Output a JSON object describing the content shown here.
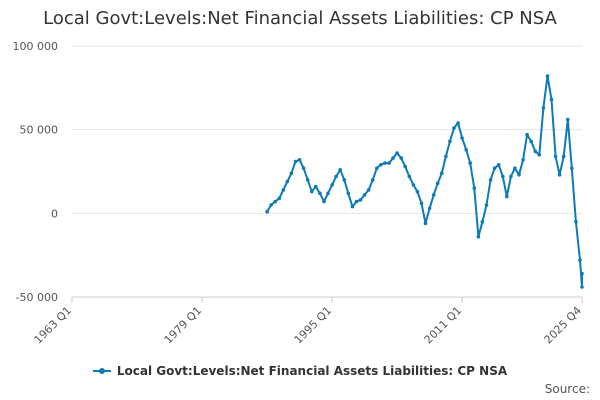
{
  "chart_data": {
    "type": "line",
    "title": "Local Govt:Levels:Net Financial Assets Liabilities: CP NSA",
    "xlabel": "",
    "ylabel": "",
    "x_start": "1963 Q1",
    "x_end": "2025 Q4",
    "x_ticks": [
      "1963 Q1",
      "1979 Q1",
      "1995 Q1",
      "2011 Q1",
      "2025 Q4"
    ],
    "y_ticks": [
      100000,
      50000,
      0,
      -50000
    ],
    "y_tick_labels": [
      "100 000",
      "50 000",
      "0",
      "-50 000"
    ],
    "ylim": [
      -50000,
      100000
    ],
    "grid": true,
    "legend_position": "bottom",
    "color": "#0e7ab6",
    "series": [
      {
        "name": "Local Govt:Levels:Net Financial Assets Liabilities: CP NSA",
        "points": [
          [
            "1987 Q1",
            1000
          ],
          [
            "1987 Q3",
            5000
          ],
          [
            "1988 Q1",
            7000
          ],
          [
            "1988 Q3",
            9000
          ],
          [
            "1989 Q1",
            14000
          ],
          [
            "1989 Q3",
            19000
          ],
          [
            "1990 Q1",
            24000
          ],
          [
            "1990 Q3",
            31000
          ],
          [
            "1991 Q1",
            32000
          ],
          [
            "1991 Q3",
            27000
          ],
          [
            "1992 Q1",
            20000
          ],
          [
            "1992 Q3",
            13000
          ],
          [
            "1993 Q1",
            16000
          ],
          [
            "1993 Q3",
            12000
          ],
          [
            "1994 Q1",
            7000
          ],
          [
            "1994 Q3",
            12000
          ],
          [
            "1995 Q1",
            17000
          ],
          [
            "1995 Q3",
            22000
          ],
          [
            "1996 Q1",
            26000
          ],
          [
            "1996 Q3",
            20000
          ],
          [
            "1997 Q1",
            12000
          ],
          [
            "1997 Q3",
            4000
          ],
          [
            "1998 Q1",
            7000
          ],
          [
            "1998 Q3",
            8000
          ],
          [
            "1999 Q1",
            11000
          ],
          [
            "1999 Q3",
            14000
          ],
          [
            "2000 Q1",
            20000
          ],
          [
            "2000 Q3",
            27000
          ],
          [
            "2001 Q1",
            29000
          ],
          [
            "2001 Q3",
            30000
          ],
          [
            "2002 Q1",
            30000
          ],
          [
            "2002 Q3",
            33000
          ],
          [
            "2003 Q1",
            36000
          ],
          [
            "2003 Q3",
            33000
          ],
          [
            "2004 Q1",
            28000
          ],
          [
            "2004 Q3",
            22000
          ],
          [
            "2005 Q1",
            17000
          ],
          [
            "2005 Q3",
            13000
          ],
          [
            "2006 Q1",
            6000
          ],
          [
            "2006 Q3",
            -6000
          ],
          [
            "2007 Q1",
            3000
          ],
          [
            "2007 Q3",
            11000
          ],
          [
            "2008 Q1",
            18000
          ],
          [
            "2008 Q3",
            24000
          ],
          [
            "2009 Q1",
            34000
          ],
          [
            "2009 Q3",
            43000
          ],
          [
            "2010 Q1",
            51000
          ],
          [
            "2010 Q3",
            54000
          ],
          [
            "2011 Q1",
            45000
          ],
          [
            "2011 Q3",
            38000
          ],
          [
            "2012 Q1",
            30000
          ],
          [
            "2012 Q3",
            15000
          ],
          [
            "2013 Q1",
            -14000
          ],
          [
            "2013 Q3",
            -5000
          ],
          [
            "2014 Q1",
            5000
          ],
          [
            "2014 Q3",
            20000
          ],
          [
            "2015 Q1",
            27000
          ],
          [
            "2015 Q3",
            29000
          ],
          [
            "2016 Q1",
            22000
          ],
          [
            "2016 Q3",
            10000
          ],
          [
            "2017 Q1",
            22000
          ],
          [
            "2017 Q3",
            27000
          ],
          [
            "2018 Q1",
            23000
          ],
          [
            "2018 Q3",
            32000
          ],
          [
            "2019 Q1",
            47000
          ],
          [
            "2019 Q3",
            43000
          ],
          [
            "2020 Q1",
            37000
          ],
          [
            "2020 Q3",
            35000
          ],
          [
            "2021 Q1",
            63000
          ],
          [
            "2021 Q3",
            82000
          ],
          [
            "2022 Q1",
            68000
          ],
          [
            "2022 Q3",
            34000
          ],
          [
            "2023 Q1",
            23000
          ],
          [
            "2023 Q3",
            34000
          ],
          [
            "2024 Q1",
            56000
          ],
          [
            "2024 Q3",
            27000
          ],
          [
            "2025 Q1",
            -5000
          ],
          [
            "2025 Q3",
            -28000
          ],
          [
            "2025 Q4",
            -44000
          ],
          [
            "2025 Q4",
            -36000
          ]
        ]
      }
    ]
  },
  "source_label": "Source:"
}
